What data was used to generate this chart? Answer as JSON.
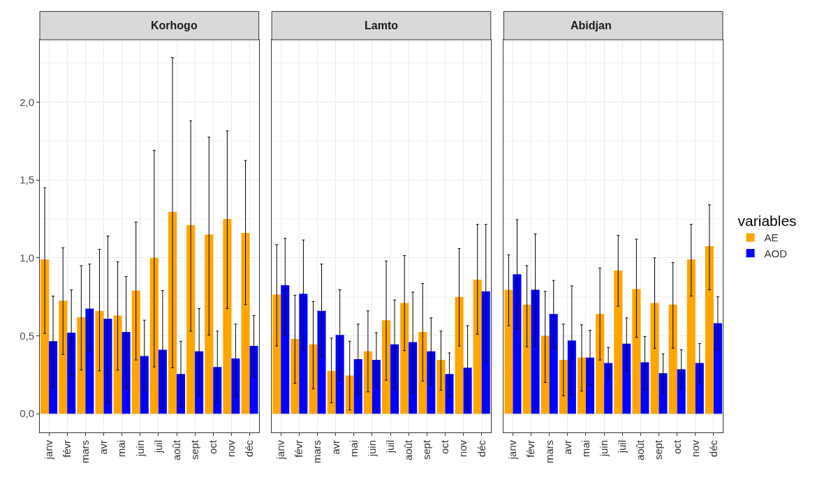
{
  "chart_data": [
    {
      "type": "bar",
      "title": "Korhogo",
      "categories": [
        "janv",
        "févr",
        "mars",
        "avr",
        "mai",
        "juin",
        "juil",
        "août",
        "sept",
        "oct",
        "nov",
        "déc"
      ],
      "series": [
        {
          "name": "AE",
          "color": "#ffa500",
          "values": [
            0.99,
            0.725,
            0.62,
            0.66,
            0.63,
            0.79,
            1.0,
            1.295,
            1.21,
            1.15,
            1.25,
            1.16
          ],
          "errors": [
            [
              0.515,
              1.45
            ],
            [
              0.38,
              1.065
            ],
            [
              0.28,
              0.95
            ],
            [
              0.275,
              1.055
            ],
            [
              0.28,
              0.975
            ],
            [
              0.345,
              1.23
            ],
            [
              0.3,
              1.69
            ],
            [
              0.295,
              2.285
            ],
            [
              0.53,
              1.88
            ],
            [
              0.505,
              1.775
            ],
            [
              0.675,
              1.815
            ],
            [
              0.7,
              1.625
            ]
          ]
        },
        {
          "name": "AOD",
          "color": "#0000ff",
          "values": [
            0.465,
            0.52,
            0.675,
            0.61,
            0.525,
            0.37,
            0.41,
            0.255,
            0.4,
            0.3,
            0.355,
            0.435
          ],
          "errors": [
            [
              0.17,
              0.755
            ],
            [
              0.245,
              0.795
            ],
            [
              0.4,
              0.96
            ],
            [
              0.07,
              1.14
            ],
            [
              0.16,
              0.88
            ],
            [
              0.14,
              0.6
            ],
            [
              0.035,
              0.79
            ],
            [
              0.04,
              0.465
            ],
            [
              0.115,
              0.675
            ],
            [
              0.07,
              0.53
            ],
            [
              0.115,
              0.575
            ],
            [
              0.24,
              0.63
            ]
          ]
        }
      ],
      "ylim": [
        -0.12,
        2.4
      ],
      "yticks": [
        {
          "value": 0,
          "label": "0,0"
        },
        {
          "value": 0.5,
          "label": "0,5"
        },
        {
          "value": 1,
          "label": "1,0"
        },
        {
          "value": 1.5,
          "label": "1,5"
        },
        {
          "value": 2,
          "label": "2,0"
        }
      ],
      "grid": true,
      "legend": "right",
      "legend_title": "variables"
    },
    {
      "type": "bar",
      "title": "Lamto",
      "categories": [
        "janv",
        "févr",
        "mars",
        "avr",
        "mai",
        "juin",
        "juil",
        "août",
        "sept",
        "oct",
        "nov",
        "déc"
      ],
      "series": [
        {
          "color": "#ffa500",
          "values": [
            0.765,
            0.48,
            0.445,
            0.275,
            0.245,
            0.4,
            0.6,
            0.71,
            0.525,
            0.345,
            0.75,
            0.86
          ],
          "errors": [
            [
              0.435,
              1.085
            ],
            [
              0.195,
              0.76
            ],
            [
              0.16,
              0.72
            ],
            [
              0.07,
              0.485
            ],
            [
              0.025,
              0.465
            ],
            [
              0.14,
              0.66
            ],
            [
              0.215,
              0.98
            ],
            [
              0.405,
              1.015
            ],
            [
              0.21,
              0.835
            ],
            [
              0.15,
              0.53
            ],
            [
              0.435,
              1.06
            ],
            [
              0.51,
              1.215
            ]
          ]
        },
        {
          "color": "#0000ff",
          "values": [
            0.825,
            0.77,
            0.66,
            0.505,
            0.35,
            0.345,
            0.445,
            0.46,
            0.4,
            0.255,
            0.295,
            0.785
          ],
          "errors": [
            [
              0.505,
              1.125
            ],
            [
              0.41,
              1.115
            ],
            [
              0.365,
              0.96
            ],
            [
              0.215,
              0.795
            ],
            [
              0.125,
              0.575
            ],
            [
              0.17,
              0.52
            ],
            [
              0.16,
              0.73
            ],
            [
              0.13,
              0.78
            ],
            [
              0.185,
              0.615
            ],
            [
              0.105,
              0.39
            ],
            [
              0.025,
              0.565
            ],
            [
              0.335,
              1.215
            ]
          ]
        }
      ],
      "ylim": [
        -0.12,
        2.4
      ],
      "yticks": [
        {
          "value": 0,
          "label": null
        },
        {
          "value": 0.5,
          "label": null
        },
        {
          "value": 1,
          "label": null
        },
        {
          "value": 1.5,
          "label": null
        },
        {
          "value": 2,
          "label": null
        }
      ],
      "grid": true,
      "tick_labels": "x"
    },
    {
      "type": "bar",
      "title": "Abidjan",
      "categories": [
        "janv",
        "févr",
        "mars",
        "avr",
        "mai",
        "juin",
        "juil",
        "août",
        "sept",
        "oct",
        "nov",
        "déc"
      ],
      "series": [
        {
          "color": "#ffa500",
          "values": [
            0.795,
            0.7,
            0.5,
            0.345,
            0.36,
            0.64,
            0.92,
            0.8,
            0.71,
            0.7,
            0.99,
            1.075
          ],
          "errors": [
            [
              0.565,
              1.02
            ],
            [
              0.43,
              0.95
            ],
            [
              0.2,
              0.785
            ],
            [
              0.115,
              0.575
            ],
            [
              0.145,
              0.57
            ],
            [
              0.345,
              0.935
            ],
            [
              0.69,
              1.145
            ],
            [
              0.49,
              1.12
            ],
            [
              0.42,
              1.0
            ],
            [
              0.42,
              0.97
            ],
            [
              0.755,
              1.215
            ],
            [
              0.795,
              1.34
            ]
          ]
        },
        {
          "color": "#0000ff",
          "values": [
            0.895,
            0.795,
            0.64,
            0.47,
            0.36,
            0.325,
            0.45,
            0.33,
            0.26,
            0.285,
            0.325,
            0.58
          ],
          "errors": [
            [
              0.545,
              1.245
            ],
            [
              0.435,
              1.155
            ],
            [
              0.42,
              0.855
            ],
            [
              0.12,
              0.82
            ],
            [
              0.185,
              0.535
            ],
            [
              0.22,
              0.425
            ],
            [
              0.275,
              0.615
            ],
            [
              0.155,
              0.495
            ],
            [
              0.13,
              0.385
            ],
            [
              0.16,
              0.41
            ],
            [
              0.195,
              0.45
            ],
            [
              0.41,
              0.75
            ]
          ]
        }
      ],
      "ylim": [
        -0.12,
        2.4
      ],
      "yticks": [
        {
          "value": 0,
          "label": null
        },
        {
          "value": 0.5,
          "label": null
        },
        {
          "value": 1,
          "label": null
        },
        {
          "value": 1.5,
          "label": null
        },
        {
          "value": 2,
          "label": null
        }
      ],
      "grid": true,
      "tick_labels": "x"
    }
  ]
}
